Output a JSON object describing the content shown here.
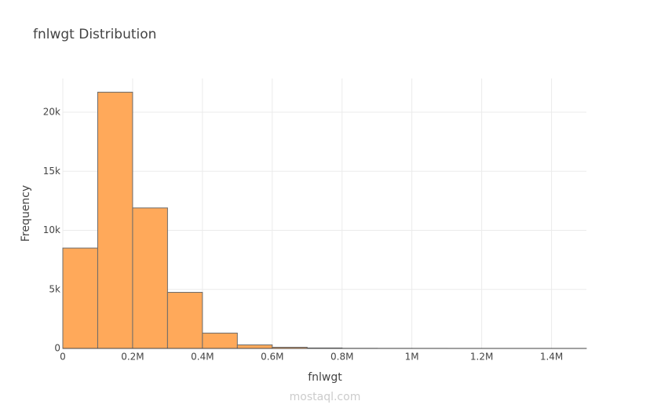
{
  "chart_data": {
    "type": "histogram",
    "title": "fnlwgt Distribution",
    "x_label": "fnlwgt",
    "y_label": "Frequency",
    "bins": [
      0,
      100000,
      200000,
      300000,
      400000,
      500000,
      600000,
      700000,
      800000,
      900000,
      1000000,
      1100000,
      1200000,
      1300000,
      1400000,
      1500000
    ],
    "counts": [
      8500,
      21700,
      11900,
      4750,
      1300,
      300,
      100,
      40,
      10,
      5,
      3,
      2,
      1,
      1,
      1
    ],
    "color": "#ffa95a",
    "edge_color": "#6b6b6b",
    "xlim": [
      0,
      1500000
    ],
    "ylim": [
      0,
      22860
    ],
    "xticks": [
      0,
      {
        "value": 200000,
        "label": "0.2M"
      },
      {
        "value": 400000,
        "label": "0.4M"
      },
      {
        "value": 600000,
        "label": "0.6M"
      },
      {
        "value": 800000,
        "label": "0.8M"
      },
      {
        "value": 1000000,
        "label": "1M"
      },
      {
        "value": 1200000,
        "label": "1.2M"
      },
      {
        "value": 1400000,
        "label": "1.4M"
      }
    ],
    "yticks": [
      0,
      {
        "value": 5000,
        "label": "5k"
      },
      {
        "value": 10000,
        "label": "10k"
      },
      {
        "value": 15000,
        "label": "15k"
      },
      {
        "value": 20000,
        "label": "20k"
      }
    ],
    "grid": true,
    "watermark": "mostaql.com"
  }
}
